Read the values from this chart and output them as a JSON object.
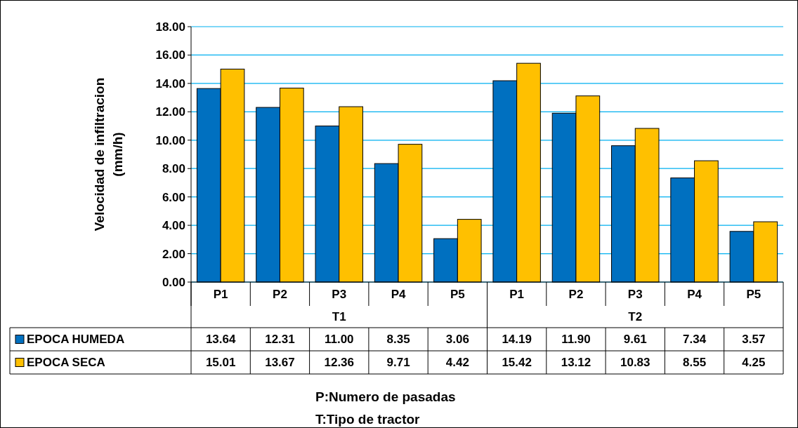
{
  "chart_data": {
    "type": "bar",
    "ylabel": "Velocidad de infiltracion\n(mm/h)",
    "annotations": [
      "T1",
      "T2",
      "P:Numero de pasadas",
      "T:Tipo de tractor"
    ],
    "categories": [
      "P1",
      "P2",
      "P3",
      "P4",
      "P5",
      "P1",
      "P2",
      "P3",
      "P4",
      "P5"
    ],
    "series": [
      {
        "name": "EPOCA HUMEDA",
        "color": "#0070c0",
        "values": [
          13.64,
          12.31,
          11.0,
          8.35,
          3.06,
          14.19,
          11.9,
          9.61,
          7.34,
          3.57
        ],
        "value_labels": [
          "13.64",
          "12.31",
          "11.00",
          "8.35",
          "3.06",
          "14.19",
          "11.90",
          "9.61",
          "7.34",
          "3.57"
        ]
      },
      {
        "name": "EPOCA SECA",
        "color": "#ffc000",
        "values": [
          15.01,
          13.67,
          12.36,
          9.71,
          4.42,
          15.42,
          13.12,
          10.83,
          8.55,
          4.25
        ],
        "value_labels": [
          "15.01",
          "13.67",
          "12.36",
          "9.71",
          "4.42",
          "15.42",
          "13.12",
          "10.83",
          "8.55",
          "4.25"
        ]
      }
    ],
    "ylim": [
      0,
      18
    ],
    "yticks": [
      {
        "value": 0,
        "label": "0.00"
      },
      {
        "value": 2,
        "label": "2.00"
      },
      {
        "value": 4,
        "label": "4.00"
      },
      {
        "value": 6,
        "label": "6.00"
      },
      {
        "value": 8,
        "label": "8.00"
      },
      {
        "value": 10,
        "label": "10.00"
      },
      {
        "value": 12,
        "label": "12.00"
      },
      {
        "value": 14,
        "label": "14.00"
      },
      {
        "value": 16,
        "label": "16.00"
      },
      {
        "value": 18,
        "label": "18.00"
      }
    ],
    "grid": "y",
    "legend": "bottom"
  }
}
